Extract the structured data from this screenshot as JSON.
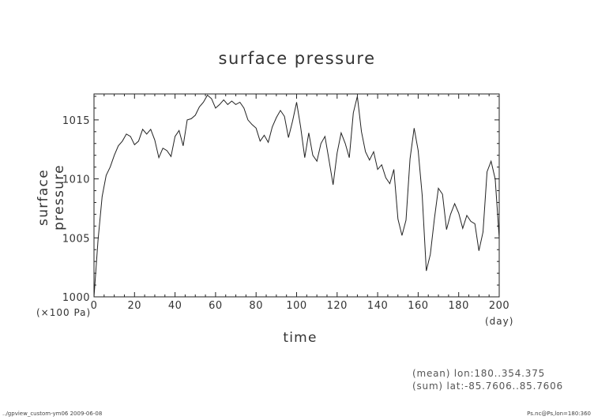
{
  "chart_data": {
    "type": "line",
    "title": "surface pressure",
    "xlabel": "time",
    "ylabel": "surface pressure",
    "x_units": "(day)",
    "y_units": "(×100 Pa)",
    "xlim": [
      0,
      200
    ],
    "ylim": [
      1000,
      1017.2
    ],
    "x_ticks": [
      "0",
      "20",
      "40",
      "60",
      "80",
      "100",
      "120",
      "140",
      "160",
      "180",
      "200"
    ],
    "y_ticks": [
      "1000",
      "1005",
      "1010",
      "1015"
    ],
    "grid": false,
    "series": [
      {
        "x": [
          0,
          2,
          4,
          6,
          8,
          10,
          12,
          14,
          16,
          18,
          20,
          22,
          24,
          26,
          28,
          30,
          32,
          34,
          36,
          38,
          40,
          42,
          44,
          46,
          48,
          50,
          52,
          54,
          56,
          58,
          60,
          62,
          64,
          66,
          68,
          70,
          72,
          74,
          76,
          78,
          80,
          82,
          84,
          86,
          88,
          90,
          92,
          94,
          96,
          98,
          100,
          102,
          104,
          106,
          108,
          110,
          112,
          114,
          116,
          118,
          120,
          122,
          124,
          126,
          128,
          130,
          132,
          134,
          136,
          138,
          140,
          142,
          144,
          146,
          148,
          150,
          152,
          154,
          156,
          158,
          160,
          162,
          164,
          166,
          168,
          170,
          172,
          174,
          176,
          178,
          180,
          182,
          184,
          186,
          188,
          190,
          192,
          194,
          196,
          198,
          200
        ],
        "values": [
          1000.0,
          1004.8,
          1008.5,
          1010.3,
          1011.0,
          1012.0,
          1012.8,
          1013.2,
          1013.8,
          1013.6,
          1012.9,
          1013.2,
          1014.2,
          1013.8,
          1014.2,
          1013.3,
          1011.8,
          1012.6,
          1012.4,
          1011.9,
          1013.6,
          1014.1,
          1012.8,
          1015.0,
          1015.1,
          1015.4,
          1016.1,
          1016.5,
          1017.1,
          1016.8,
          1016.0,
          1016.3,
          1016.7,
          1016.3,
          1016.6,
          1016.3,
          1016.5,
          1016.0,
          1015.0,
          1014.6,
          1014.3,
          1013.2,
          1013.7,
          1013.1,
          1014.4,
          1015.2,
          1015.8,
          1015.3,
          1013.5,
          1014.9,
          1016.5,
          1014.4,
          1011.8,
          1013.9,
          1012.0,
          1011.5,
          1013.0,
          1013.6,
          1011.6,
          1009.5,
          1012.2,
          1013.9,
          1013.0,
          1011.8,
          1015.6,
          1017.0,
          1014.0,
          1012.3,
          1011.6,
          1012.3,
          1010.8,
          1011.2,
          1010.1,
          1009.6,
          1010.8,
          1006.6,
          1005.2,
          1006.5,
          1011.7,
          1014.3,
          1012.4,
          1008.6,
          1002.2,
          1003.6,
          1006.6,
          1009.2,
          1008.7,
          1005.7,
          1007.0,
          1007.9,
          1007.1,
          1005.8,
          1006.9,
          1006.4,
          1006.2,
          1003.9,
          1005.5,
          1010.6,
          1011.5,
          1010.0,
          1005.0
        ]
      }
    ]
  },
  "annotations": {
    "line1": "(mean) lon:180..354.375",
    "line2": "(sum) lat:-85.7606..85.7606"
  },
  "footer": {
    "left": "../gpview_custom-ym06   2009-06-08",
    "right": "Ps.nc@Ps,lon=180:360"
  }
}
